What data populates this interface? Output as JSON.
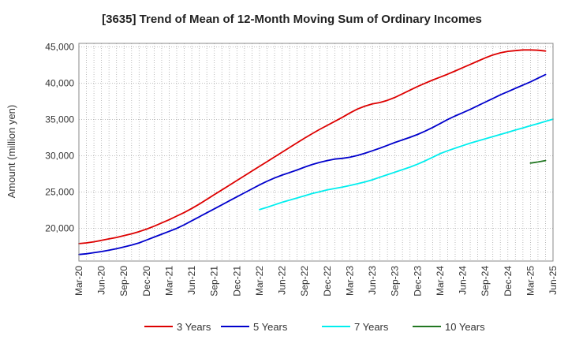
{
  "chart_data": {
    "type": "line",
    "title": "[3635]  Trend of Mean of 12-Month Moving Sum of Ordinary Incomes",
    "xlabel": "",
    "ylabel": "Amount (million yen)",
    "ylim": [
      15500,
      45500
    ],
    "yticks": [
      20000,
      25000,
      30000,
      35000,
      40000,
      45000
    ],
    "ytick_labels": [
      "20,000",
      "25,000",
      "30,000",
      "35,000",
      "40,000",
      "45,000"
    ],
    "xtick_labels": [
      "Mar-20",
      "Jun-20",
      "Sep-20",
      "Dec-20",
      "Mar-21",
      "Jun-21",
      "Sep-21",
      "Dec-21",
      "Mar-22",
      "Jun-22",
      "Sep-22",
      "Dec-22",
      "Mar-23",
      "Jun-23",
      "Sep-23",
      "Dec-23",
      "Mar-24",
      "Jun-24",
      "Sep-24",
      "Dec-24",
      "Mar-25",
      "Jun-25"
    ],
    "x_start": "Mar-20",
    "x_months_span": 63,
    "grid": true,
    "legend_position": "bottom",
    "series": [
      {
        "name": "3 Years",
        "color": "#dd0000",
        "start_month_index": 0,
        "values": [
          17900,
          18000,
          18150,
          18350,
          18550,
          18750,
          19000,
          19250,
          19550,
          19900,
          20300,
          20750,
          21200,
          21700,
          22200,
          22750,
          23350,
          24000,
          24650,
          25300,
          25950,
          26600,
          27250,
          27900,
          28550,
          29200,
          29850,
          30500,
          31150,
          31800,
          32450,
          33050,
          33650,
          34200,
          34750,
          35300,
          35900,
          36450,
          36850,
          37150,
          37350,
          37650,
          38050,
          38550,
          39050,
          39550,
          40000,
          40450,
          40850,
          41250,
          41700,
          42150,
          42600,
          43050,
          43500,
          43900,
          44200,
          44400,
          44500,
          44600,
          44600,
          44550,
          44450
        ]
      },
      {
        "name": "5 Years",
        "color": "#0000cc",
        "start_month_index": 0,
        "values": [
          16400,
          16500,
          16650,
          16800,
          17000,
          17200,
          17450,
          17700,
          18000,
          18400,
          18800,
          19200,
          19600,
          20000,
          20500,
          21050,
          21600,
          22150,
          22700,
          23250,
          23800,
          24350,
          24900,
          25450,
          26000,
          26500,
          26950,
          27350,
          27700,
          28050,
          28450,
          28800,
          29100,
          29350,
          29550,
          29650,
          29800,
          30050,
          30350,
          30700,
          31050,
          31450,
          31850,
          32200,
          32550,
          32950,
          33400,
          33900,
          34450,
          35000,
          35500,
          35950,
          36400,
          36900,
          37400,
          37900,
          38400,
          38850,
          39300,
          39750,
          40200,
          40700,
          41200
        ]
      },
      {
        "name": "7 Years",
        "color": "#00eeee",
        "start_month_index": 24,
        "values": [
          22600,
          22900,
          23250,
          23600,
          23900,
          24200,
          24500,
          24800,
          25050,
          25300,
          25500,
          25700,
          25900,
          26150,
          26400,
          26700,
          27050,
          27400,
          27750,
          28100,
          28450,
          28850,
          29300,
          29800,
          30300,
          30700,
          31050,
          31400,
          31750,
          32050,
          32350,
          32650,
          32950,
          33250,
          33550,
          33850,
          34150,
          34450,
          34750,
          35050
        ]
      },
      {
        "name": "10 Years",
        "color": "#227722",
        "start_month_index": 60,
        "values": [
          29000,
          29150,
          29350
        ]
      }
    ]
  }
}
